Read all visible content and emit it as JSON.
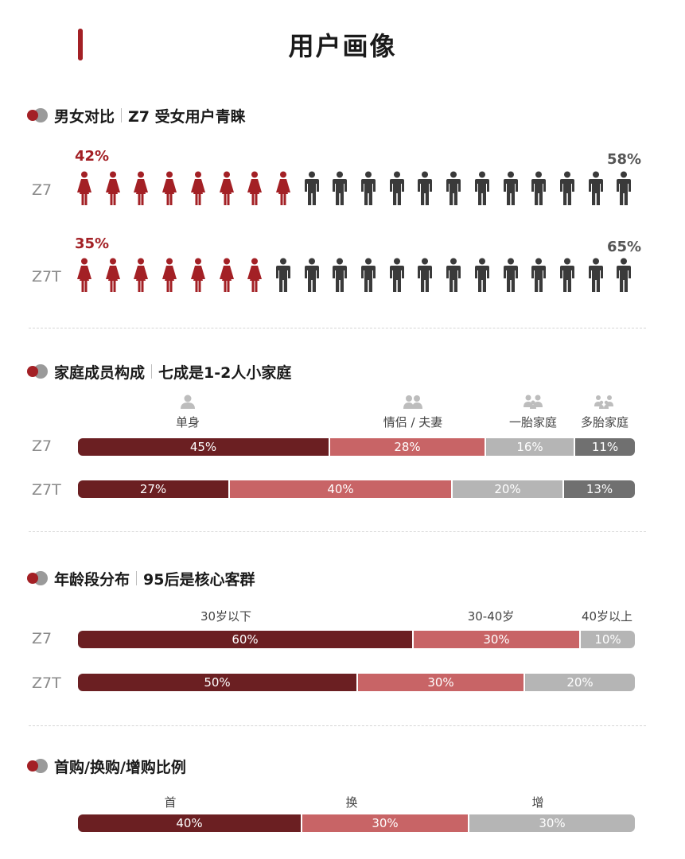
{
  "page_title": "用户画像",
  "sections": {
    "gender": {
      "title": "男女对比",
      "subtitle": "Z7 受女用户青睐",
      "rows": [
        {
          "label": "Z7",
          "female_pct_label": "42%",
          "male_pct_label": "58%"
        },
        {
          "label": "Z7T",
          "female_pct_label": "35%",
          "male_pct_label": "65%"
        }
      ]
    },
    "family": {
      "title": "家庭成员构成",
      "subtitle": "七成是1-2人小家庭",
      "categories": [
        "单身",
        "情侣 / 夫妻",
        "一胎家庭",
        "多胎家庭"
      ]
    },
    "age": {
      "title": "年龄段分布",
      "subtitle": "95后是核心客群",
      "categories": [
        "30岁以下",
        "30-40岁",
        "40岁以上"
      ]
    },
    "purchase": {
      "title": "首购/换购/增购比例",
      "categories": [
        "首",
        "换",
        "增"
      ]
    }
  },
  "colors": {
    "dark_red": "#6b1f22",
    "light_red": "#c86466",
    "light_grey": "#b5b5b5",
    "dark_grey": "#707070",
    "female_icon": "#a32025",
    "male_icon": "#3a3a3a"
  },
  "chart_data": [
    {
      "type": "bar",
      "title": "男女对比",
      "categories": [
        "Z7",
        "Z7T"
      ],
      "series": [
        {
          "name": "女",
          "values": [
            42,
            35
          ]
        },
        {
          "name": "男",
          "values": [
            58,
            65
          ]
        }
      ],
      "icon_counts": {
        "total": 20,
        "female": [
          8,
          7
        ]
      },
      "unit": "%"
    },
    {
      "type": "bar",
      "title": "家庭成员构成",
      "categories": [
        "Z7",
        "Z7T"
      ],
      "series": [
        {
          "name": "单身",
          "values": [
            45,
            27
          ]
        },
        {
          "name": "情侣 / 夫妻",
          "values": [
            28,
            40
          ]
        },
        {
          "name": "一胎家庭",
          "values": [
            16,
            20
          ]
        },
        {
          "name": "多胎家庭",
          "values": [
            11,
            13
          ]
        }
      ],
      "unit": "%"
    },
    {
      "type": "bar",
      "title": "年龄段分布",
      "categories": [
        "Z7",
        "Z7T"
      ],
      "series": [
        {
          "name": "30岁以下",
          "values": [
            60,
            50
          ]
        },
        {
          "name": "30-40岁",
          "values": [
            30,
            30
          ]
        },
        {
          "name": "40岁以上",
          "values": [
            10,
            20
          ]
        }
      ],
      "unit": "%"
    },
    {
      "type": "bar",
      "title": "首购/换购/增购比例",
      "categories": [
        ""
      ],
      "series": [
        {
          "name": "首",
          "values": [
            40
          ]
        },
        {
          "name": "换",
          "values": [
            30
          ]
        },
        {
          "name": "增",
          "values": [
            30
          ]
        }
      ],
      "unit": "%"
    }
  ]
}
